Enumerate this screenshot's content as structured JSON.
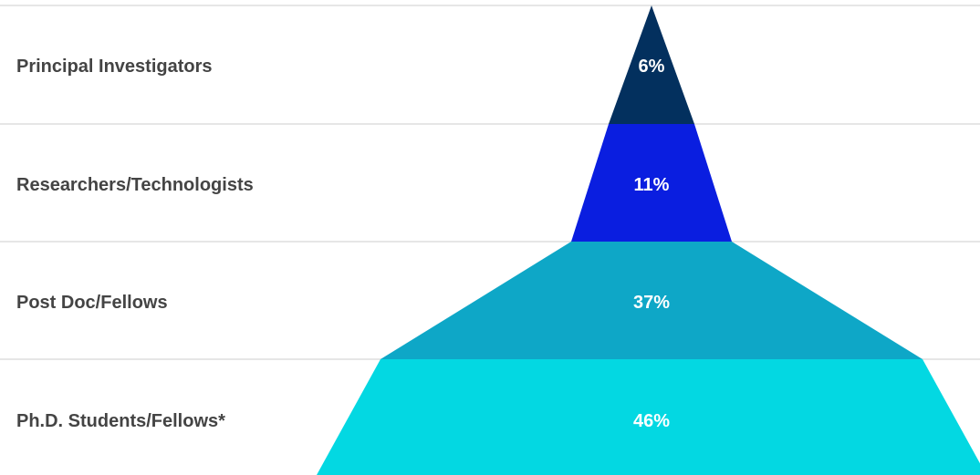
{
  "chart_data": {
    "type": "funnel",
    "title": "",
    "categories": [
      "Principal Investigators",
      "Researchers/Technologists",
      "Post Doc/Fellows",
      "Ph.D. Students/Fellows*"
    ],
    "values": [
      6,
      11,
      37,
      46
    ],
    "value_labels": [
      "6%",
      "11%",
      "37%",
      "46%"
    ],
    "colors": [
      "#03305e",
      "#0a1ee0",
      "#0ea7c7",
      "#03d8e2"
    ],
    "grid": "horizontal separators",
    "legend": "none"
  }
}
